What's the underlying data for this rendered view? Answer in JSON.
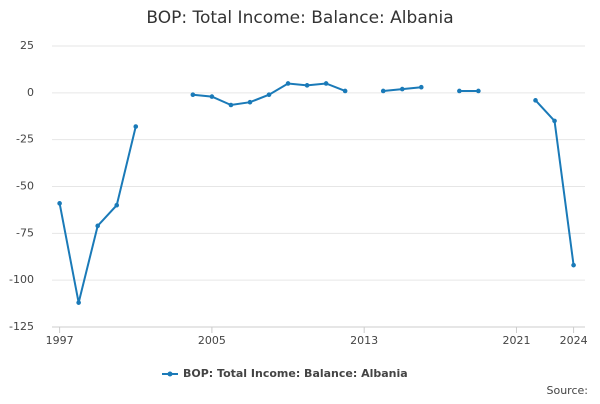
{
  "chart_data": {
    "type": "line",
    "title": "BOP: Total Income: Balance: Albania",
    "x": [
      1997,
      1998,
      1999,
      2000,
      2001,
      2002,
      2003,
      2004,
      2005,
      2006,
      2007,
      2008,
      2009,
      2010,
      2011,
      2012,
      2013,
      2014,
      2015,
      2016,
      2017,
      2018,
      2019,
      2020,
      2021,
      2022,
      2023,
      2024
    ],
    "series": [
      {
        "name": "BOP: Total Income: Balance: Albania",
        "color": "#1a7ab8",
        "values": [
          -59,
          -112,
          -71,
          -60,
          -18,
          null,
          null,
          -1,
          -2,
          -6.5,
          -5,
          -1,
          5,
          4,
          5,
          1,
          null,
          1,
          2,
          3,
          null,
          1,
          1,
          null,
          null,
          -4,
          -15,
          -92
        ]
      }
    ],
    "xlim": [
      1996.6,
      2024.6
    ],
    "xticks": [
      1997,
      2005,
      2013,
      2021,
      2024
    ],
    "ylim": [
      -125,
      25
    ],
    "yticks": [
      -125,
      -100,
      -75,
      -50,
      -25,
      0,
      25
    ],
    "grid": true,
    "legend": "bottom",
    "source": "Source:"
  }
}
